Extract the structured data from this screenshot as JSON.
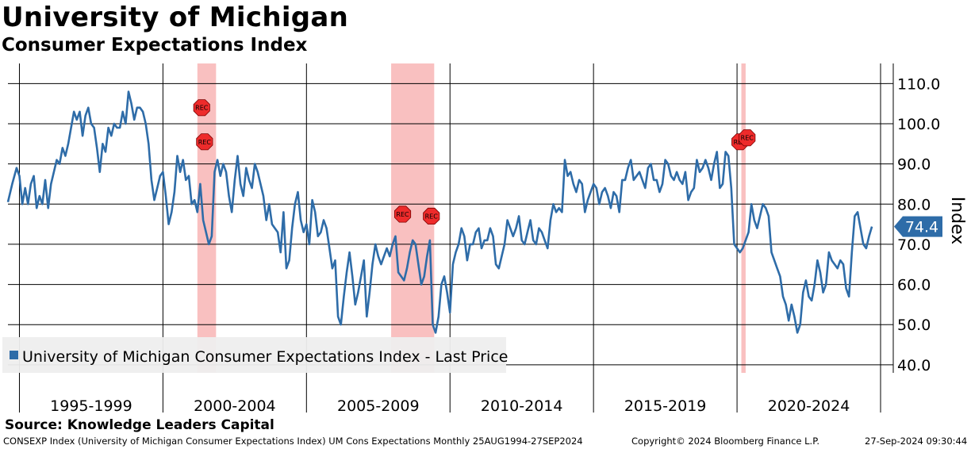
{
  "title": "University of Michigan",
  "subtitle": "Consumer Expectations Index",
  "source": "Source: Knowledge Leaders Capital",
  "footer": {
    "ticker": "CONSEXP Index (University of Michigan Consumer Expectations Index) UM Cons Expectations  Monthly 25AUG1994-27SEP2024",
    "copyright": "Copyright© 2024 Bloomberg Finance L.P.",
    "timestamp": "27-Sep-2024 09:30:44"
  },
  "chart_data": {
    "type": "line",
    "title": "Consumer Expectations Index",
    "ylabel": "Index",
    "ylim": [
      38,
      115
    ],
    "xlim": [
      1994.6,
      2025.0
    ],
    "y_ticks": [
      "40.0",
      "50.0",
      "60.0",
      "70.0",
      "80.0",
      "90.0",
      "100.0",
      "110.0"
    ],
    "periods": [
      {
        "label": "1995-1999",
        "start": 1995,
        "end": 2000
      },
      {
        "label": "2000-2004",
        "start": 2000,
        "end": 2005
      },
      {
        "label": "2005-2009",
        "start": 2005,
        "end": 2010
      },
      {
        "label": "2010-2014",
        "start": 2010,
        "end": 2015
      },
      {
        "label": "2015-2019",
        "start": 2015,
        "end": 2020
      },
      {
        "label": "2020-2024",
        "start": 2020,
        "end": 2025
      }
    ],
    "recessions": [
      {
        "start": 2001.2,
        "end": 2001.85
      },
      {
        "start": 2007.95,
        "end": 2009.45
      },
      {
        "start": 2020.15,
        "end": 2020.3
      }
    ],
    "rec_markers": [
      {
        "x": 2001.35,
        "y": 104.0,
        "label": "REC"
      },
      {
        "x": 2001.45,
        "y": 95.5,
        "label": "REC"
      },
      {
        "x": 2008.35,
        "y": 77.5,
        "label": "REC"
      },
      {
        "x": 2009.35,
        "y": 77.0,
        "label": "REC"
      },
      {
        "x": 2020.1,
        "y": 95.5,
        "label": "REC"
      },
      {
        "x": 2020.35,
        "y": 96.5,
        "label": "REC"
      }
    ],
    "last_price": {
      "label": "74.4",
      "value": 74.4
    },
    "legend": "University of Michigan Consumer Expectations Index - Last Price",
    "series": [
      {
        "name": "University of Michigan Consumer Expectations Index - Last Price",
        "color": "#2e6ca8",
        "x": [
          1994.6,
          1994.75,
          1994.9,
          1995.0,
          1995.1,
          1995.2,
          1995.3,
          1995.4,
          1995.5,
          1995.6,
          1995.7,
          1995.8,
          1995.9,
          1996.0,
          1996.1,
          1996.2,
          1996.3,
          1996.4,
          1996.5,
          1996.6,
          1996.7,
          1996.8,
          1996.9,
          1997.0,
          1997.1,
          1997.2,
          1997.3,
          1997.4,
          1997.5,
          1997.6,
          1997.7,
          1997.8,
          1997.9,
          1998.0,
          1998.1,
          1998.2,
          1998.3,
          1998.4,
          1998.5,
          1998.6,
          1998.7,
          1998.8,
          1998.9,
          1999.0,
          1999.1,
          1999.2,
          1999.3,
          1999.4,
          1999.5,
          1999.6,
          1999.7,
          1999.8,
          1999.9,
          2000.0,
          2000.1,
          2000.2,
          2000.3,
          2000.4,
          2000.5,
          2000.6,
          2000.7,
          2000.8,
          2000.9,
          2001.0,
          2001.1,
          2001.2,
          2001.3,
          2001.4,
          2001.5,
          2001.6,
          2001.7,
          2001.8,
          2001.9,
          2002.0,
          2002.1,
          2002.2,
          2002.3,
          2002.4,
          2002.5,
          2002.6,
          2002.7,
          2002.8,
          2002.9,
          2003.0,
          2003.1,
          2003.2,
          2003.3,
          2003.4,
          2003.5,
          2003.6,
          2003.7,
          2003.8,
          2003.9,
          2004.0,
          2004.1,
          2004.2,
          2004.3,
          2004.4,
          2004.5,
          2004.6,
          2004.7,
          2004.8,
          2004.9,
          2005.0,
          2005.1,
          2005.2,
          2005.3,
          2005.4,
          2005.5,
          2005.6,
          2005.7,
          2005.8,
          2005.9,
          2006.0,
          2006.1,
          2006.2,
          2006.3,
          2006.4,
          2006.5,
          2006.6,
          2006.7,
          2006.8,
          2006.9,
          2007.0,
          2007.1,
          2007.2,
          2007.3,
          2007.4,
          2007.5,
          2007.6,
          2007.7,
          2007.8,
          2007.9,
          2008.0,
          2008.1,
          2008.2,
          2008.3,
          2008.4,
          2008.5,
          2008.6,
          2008.7,
          2008.8,
          2008.9,
          2009.0,
          2009.1,
          2009.2,
          2009.3,
          2009.4,
          2009.5,
          2009.6,
          2009.7,
          2009.8,
          2009.9,
          2010.0,
          2010.1,
          2010.2,
          2010.3,
          2010.4,
          2010.5,
          2010.6,
          2010.7,
          2010.8,
          2010.9,
          2011.0,
          2011.1,
          2011.2,
          2011.3,
          2011.4,
          2011.5,
          2011.6,
          2011.7,
          2011.8,
          2011.9,
          2012.0,
          2012.1,
          2012.2,
          2012.3,
          2012.4,
          2012.5,
          2012.6,
          2012.7,
          2012.8,
          2012.9,
          2013.0,
          2013.1,
          2013.2,
          2013.3,
          2013.4,
          2013.5,
          2013.6,
          2013.7,
          2013.8,
          2013.9,
          2014.0,
          2014.1,
          2014.2,
          2014.3,
          2014.4,
          2014.5,
          2014.6,
          2014.7,
          2014.8,
          2014.9,
          2015.0,
          2015.1,
          2015.2,
          2015.3,
          2015.4,
          2015.5,
          2015.6,
          2015.7,
          2015.8,
          2015.9,
          2016.0,
          2016.1,
          2016.2,
          2016.3,
          2016.4,
          2016.5,
          2016.6,
          2016.7,
          2016.8,
          2016.9,
          2017.0,
          2017.1,
          2017.2,
          2017.3,
          2017.4,
          2017.5,
          2017.6,
          2017.7,
          2017.8,
          2017.9,
          2018.0,
          2018.1,
          2018.2,
          2018.3,
          2018.4,
          2018.5,
          2018.6,
          2018.7,
          2018.8,
          2018.9,
          2019.0,
          2019.1,
          2019.2,
          2019.3,
          2019.4,
          2019.5,
          2019.6,
          2019.7,
          2019.8,
          2019.9,
          2020.0,
          2020.1,
          2020.2,
          2020.3,
          2020.4,
          2020.5,
          2020.6,
          2020.7,
          2020.8,
          2020.9,
          2021.0,
          2021.1,
          2021.2,
          2021.3,
          2021.4,
          2021.5,
          2021.6,
          2021.7,
          2021.8,
          2021.9,
          2022.0,
          2022.1,
          2022.2,
          2022.3,
          2022.4,
          2022.5,
          2022.6,
          2022.7,
          2022.8,
          2022.9,
          2023.0,
          2023.1,
          2023.2,
          2023.3,
          2023.4,
          2023.5,
          2023.6,
          2023.7,
          2023.8,
          2023.9,
          2024.0,
          2024.1,
          2024.2,
          2024.3,
          2024.4,
          2024.5,
          2024.6,
          2024.7
        ],
        "values": [
          80.5,
          85,
          89,
          87,
          80,
          84,
          80,
          85,
          87,
          79,
          82,
          80,
          86,
          79,
          85,
          88,
          91,
          90,
          94,
          92,
          95,
          99,
          103,
          101,
          103,
          97,
          102,
          104,
          100,
          99,
          94,
          88,
          95,
          93,
          99,
          97,
          100,
          99,
          99,
          103,
          100,
          108,
          105,
          101,
          104,
          104,
          103,
          100,
          95,
          86,
          81,
          84,
          87,
          88,
          82,
          75,
          78,
          83,
          92,
          88,
          91,
          86,
          87,
          80,
          81,
          78,
          85,
          76,
          73,
          70,
          72,
          88,
          91,
          87,
          90,
          88,
          82,
          78,
          86,
          92,
          85,
          82,
          89,
          86,
          84,
          90,
          88,
          85,
          82,
          76,
          80,
          75,
          74,
          73,
          68,
          78,
          64,
          66,
          74,
          80,
          83,
          76,
          73,
          75,
          70,
          81,
          78,
          72,
          73,
          76,
          74,
          69,
          64,
          66,
          52,
          50,
          57,
          63,
          68,
          62,
          55,
          58,
          62,
          66,
          52,
          58,
          65,
          70,
          67,
          65,
          67,
          69,
          67,
          70,
          72,
          63,
          62,
          61,
          64,
          68,
          71,
          70,
          65,
          60,
          62,
          67,
          71,
          50,
          48,
          52,
          60,
          62,
          58,
          53,
          65,
          68,
          70,
          74,
          72,
          66,
          70,
          70,
          73,
          74,
          69,
          71,
          71,
          74,
          72,
          65,
          64,
          67,
          70,
          76,
          74,
          72,
          74,
          77,
          71,
          70,
          73,
          76,
          71,
          70,
          74,
          73,
          71,
          69,
          76,
          80,
          78,
          79,
          78,
          91,
          87,
          88,
          85,
          83,
          86,
          85,
          78,
          81,
          83,
          85,
          84,
          80,
          83,
          84,
          82,
          79,
          83,
          82,
          78,
          86,
          86,
          89,
          91,
          86,
          87,
          88,
          86,
          84,
          89,
          90,
          86,
          86,
          83,
          85,
          91,
          90,
          87,
          86,
          88,
          86,
          85,
          88,
          81,
          83,
          84,
          91,
          88,
          89,
          91,
          89,
          86,
          90,
          93,
          84,
          85,
          93,
          92,
          84,
          70,
          69,
          68,
          69,
          71,
          73,
          80,
          76,
          74,
          77,
          80,
          79,
          77,
          68,
          66,
          64,
          62,
          57,
          55,
          51,
          55,
          52,
          48,
          50,
          58,
          61,
          57,
          56,
          60,
          66,
          63,
          58,
          60,
          68,
          66,
          65,
          64,
          66,
          65,
          59,
          57,
          68,
          77,
          78,
          74,
          70,
          69,
          72,
          74.4
        ]
      }
    ]
  }
}
